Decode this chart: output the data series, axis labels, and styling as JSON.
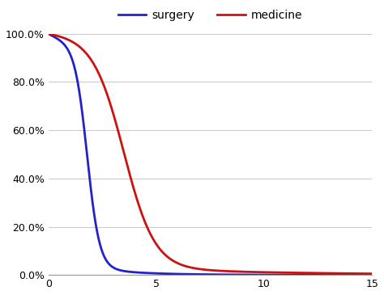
{
  "surgery_color": "#2222cc",
  "medicine_color": "#cc1111",
  "legend_surgery": "surgery",
  "legend_medicine": "medicine",
  "xlim": [
    0,
    15
  ],
  "ylim": [
    0.0,
    1.0
  ],
  "xticks": [
    0,
    5,
    10,
    15
  ],
  "yticks": [
    0.0,
    0.2,
    0.4,
    0.6,
    0.8,
    1.0
  ],
  "line_width": 2.0,
  "background_color": "#ffffff",
  "grid_color": "#cccccc",
  "legend_fontsize": 10,
  "tick_fontsize": 9
}
